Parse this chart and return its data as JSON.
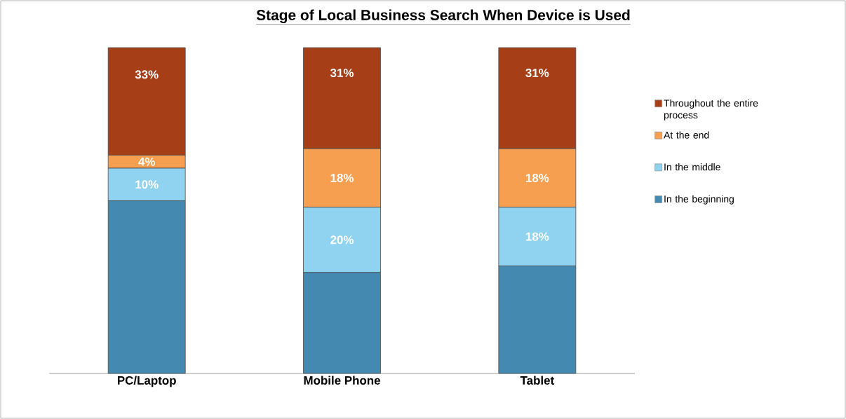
{
  "chart_data": {
    "type": "bar",
    "stacked": true,
    "title": "Stage of Local Business Search When Device is Used",
    "categories": [
      "PC/Laptop",
      "Mobile Phone",
      "Tablet"
    ],
    "series": [
      {
        "name": "In the beginning",
        "color": "#4489b0",
        "values": [
          53,
          31,
          33
        ],
        "value_labels": [
          null,
          null,
          null
        ]
      },
      {
        "name": "In the middle",
        "color": "#8fd3f0",
        "values": [
          10,
          20,
          18
        ],
        "value_labels": [
          "10%",
          "20%",
          "18%"
        ]
      },
      {
        "name": "At the end",
        "color": "#f79f50",
        "values": [
          4,
          18,
          18
        ],
        "value_labels": [
          "4%",
          "18%",
          "18%"
        ]
      },
      {
        "name": "Throughout the entire process",
        "color": "#a63f17",
        "values": [
          33,
          31,
          31
        ],
        "value_labels": [
          "33%",
          "31%",
          "31%"
        ]
      }
    ],
    "tick_labels": "x",
    "legend": "right",
    "marker": "square"
  }
}
